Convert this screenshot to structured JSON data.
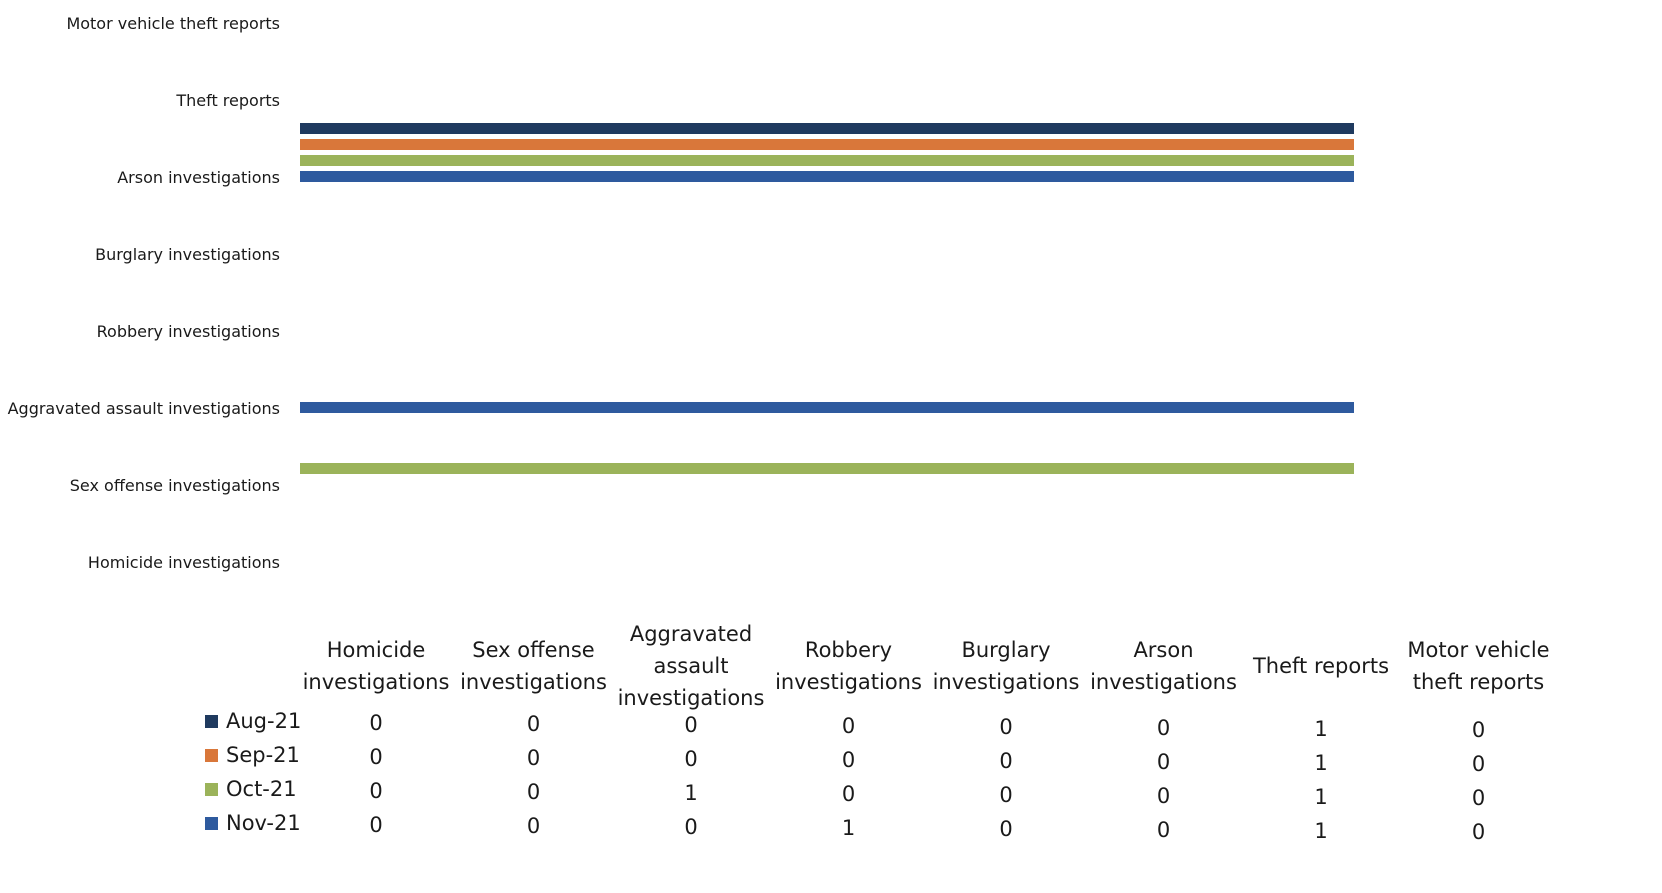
{
  "chart_data": {
    "type": "bar",
    "orientation": "horizontal",
    "categories": [
      "Homicide investigations",
      "Sex offense investigations",
      "Aggravated assault investigations",
      "Robbery investigations",
      "Burglary investigations",
      "Arson investigations",
      "Theft reports",
      "Motor vehicle theft reports"
    ],
    "axis_category_labels": [
      "Homicide investigations",
      "Sex offense investigations",
      "Aggravated assault investigations",
      "Robbery investigations",
      "Burglary  investigations",
      "Arson investigations",
      "Theft reports",
      "Motor vehicle theft reports"
    ],
    "series": [
      {
        "name": "Aug-21",
        "color": "#1f3a5f",
        "values": [
          0,
          0,
          0,
          0,
          0,
          0,
          1,
          0
        ]
      },
      {
        "name": "Sep-21",
        "color": "#d9773a",
        "values": [
          0,
          0,
          0,
          0,
          0,
          0,
          1,
          0
        ]
      },
      {
        "name": "Oct-21",
        "color": "#9bb35a",
        "values": [
          0,
          0,
          1,
          0,
          0,
          0,
          1,
          0
        ]
      },
      {
        "name": "Nov-21",
        "color": "#2e5a9e",
        "values": [
          0,
          0,
          0,
          1,
          0,
          0,
          1,
          0
        ]
      }
    ],
    "xlim": [
      0,
      1
    ],
    "grid": false,
    "data_table": true,
    "legend": "data-table-left"
  }
}
